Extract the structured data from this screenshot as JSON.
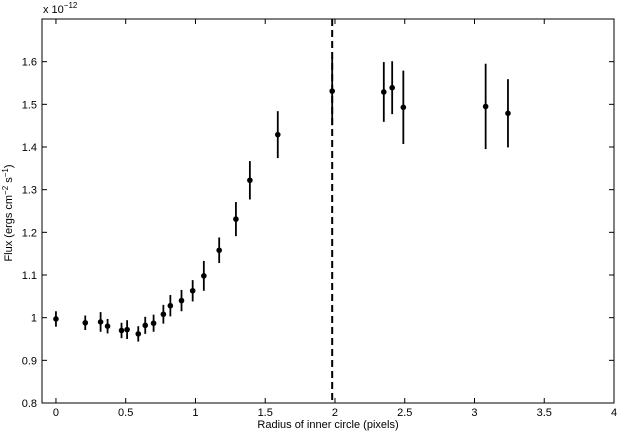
{
  "chart_data": {
    "type": "scatter",
    "xlabel": "Radius of inner circle (pixels)",
    "ylabel_text": "Flux (ergs cm",
    "ylabel_exp1": "−2",
    "ylabel_mid": " s",
    "ylabel_exp2": "−1",
    "ylabel_end": ")",
    "ylabel": "Flux (ergs cm^-2 s^-1)",
    "multiplier_base": "x 10",
    "multiplier_exp": "−12",
    "xlim": [
      -0.1,
      4
    ],
    "ylim": [
      0.8,
      1.7
    ],
    "xticks": [
      0,
      0.5,
      1,
      1.5,
      2,
      2.5,
      3,
      3.5,
      4
    ],
    "yticks": [
      0.8,
      0.9,
      1,
      1.1,
      1.2,
      1.3,
      1.4,
      1.5,
      1.6
    ],
    "xtick_labels": [
      "0",
      "0.5",
      "1",
      "1.5",
      "2",
      "2.5",
      "3",
      "3.5",
      "4"
    ],
    "ytick_labels": [
      "0.8",
      "0.9",
      "1",
      "1.1",
      "1.2",
      "1.3",
      "1.4",
      "1.5",
      "1.6"
    ],
    "vline_x": 1.98,
    "grid": false,
    "marker_color": "#000000",
    "series": [
      {
        "points": [
          {
            "x": 0.0,
            "y": 0.997,
            "err": 0.018
          },
          {
            "x": 0.21,
            "y": 0.988,
            "err": 0.017
          },
          {
            "x": 0.32,
            "y": 0.99,
            "err": 0.023
          },
          {
            "x": 0.37,
            "y": 0.98,
            "err": 0.017
          },
          {
            "x": 0.47,
            "y": 0.97,
            "err": 0.018
          },
          {
            "x": 0.51,
            "y": 0.972,
            "err": 0.022
          },
          {
            "x": 0.59,
            "y": 0.962,
            "err": 0.018
          },
          {
            "x": 0.64,
            "y": 0.982,
            "err": 0.02
          },
          {
            "x": 0.7,
            "y": 0.987,
            "err": 0.02
          },
          {
            "x": 0.77,
            "y": 1.008,
            "err": 0.022
          },
          {
            "x": 0.82,
            "y": 1.028,
            "err": 0.025
          },
          {
            "x": 0.9,
            "y": 1.04,
            "err": 0.025
          },
          {
            "x": 0.98,
            "y": 1.063,
            "err": 0.025
          },
          {
            "x": 1.06,
            "y": 1.098,
            "err": 0.035
          },
          {
            "x": 1.17,
            "y": 1.158,
            "err": 0.03
          },
          {
            "x": 1.29,
            "y": 1.231,
            "err": 0.04
          },
          {
            "x": 1.39,
            "y": 1.322,
            "err": 0.045
          },
          {
            "x": 1.59,
            "y": 1.429,
            "err": 0.055
          },
          {
            "x": 1.98,
            "y": 1.531,
            "err": 0.08
          },
          {
            "x": 2.35,
            "y": 1.529,
            "err": 0.07
          },
          {
            "x": 2.41,
            "y": 1.539,
            "err": 0.062
          },
          {
            "x": 2.49,
            "y": 1.493,
            "err": 0.086
          },
          {
            "x": 3.08,
            "y": 1.495,
            "err": 0.1
          },
          {
            "x": 3.24,
            "y": 1.479,
            "err": 0.08
          }
        ]
      }
    ]
  }
}
